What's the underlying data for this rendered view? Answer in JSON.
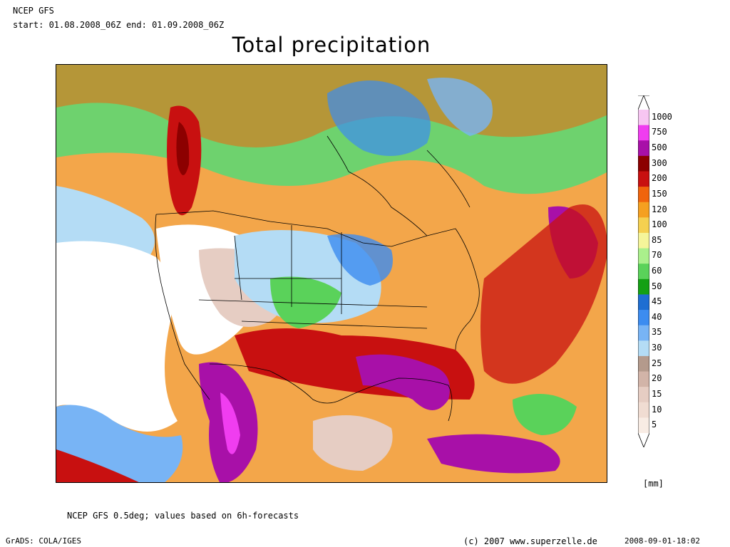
{
  "header": {
    "model": "NCEP GFS",
    "range": "start: 01.08.2008_06Z end: 01.09.2008_06Z"
  },
  "title": "Total precipitation",
  "legend": {
    "unit": "[mm]",
    "levels": [
      {
        "label": "1000",
        "color": "#f7c6f2"
      },
      {
        "label": "750",
        "color": "#f03df0"
      },
      {
        "label": "500",
        "color": "#a810a8"
      },
      {
        "label": "300",
        "color": "#8c0000"
      },
      {
        "label": "200",
        "color": "#c81010"
      },
      {
        "label": "150",
        "color": "#f0640c"
      },
      {
        "label": "120",
        "color": "#f5a020"
      },
      {
        "label": "100",
        "color": "#f5d050"
      },
      {
        "label": "85",
        "color": "#f5f59a"
      },
      {
        "label": "70",
        "color": "#aaf08c"
      },
      {
        "label": "60",
        "color": "#5ad25a"
      },
      {
        "label": "50",
        "color": "#14a014"
      },
      {
        "label": "45",
        "color": "#1e6ed2"
      },
      {
        "label": "40",
        "color": "#3c8cf0"
      },
      {
        "label": "35",
        "color": "#78b4f5"
      },
      {
        "label": "30",
        "color": "#b4dcf5"
      },
      {
        "label": "25",
        "color": "#b49a8c"
      },
      {
        "label": "20",
        "color": "#d2b4a8"
      },
      {
        "label": "15",
        "color": "#e6cdc3"
      },
      {
        "label": "10",
        "color": "#f0dcd2"
      },
      {
        "label": "5",
        "color": "#f8ece4"
      }
    ]
  },
  "footer": {
    "note": "NCEP GFS 0.5deg; values based on 6h-forecasts",
    "software": "GrADS: COLA/IGES",
    "copyright": "(c) 2007 www.superzelle.de",
    "timestamp": "2008-09-01-18:02"
  }
}
